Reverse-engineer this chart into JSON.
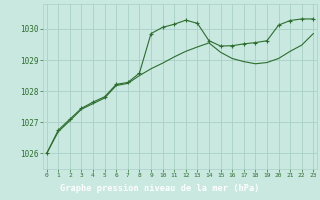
{
  "bg_color": "#c8e8e0",
  "plot_bg_color": "#c8e8e0",
  "label_bg_color": "#2d6e2d",
  "grid_color": "#a8d0c8",
  "line_color1": "#2d6e2d",
  "line_color2": "#2d6e2d",
  "xlabel": "Graphe pression niveau de la mer (hPa)",
  "ylim": [
    1025.5,
    1030.8
  ],
  "xlim": [
    -0.3,
    23.3
  ],
  "yticks": [
    1026,
    1027,
    1028,
    1029,
    1030
  ],
  "xticks": [
    0,
    1,
    2,
    3,
    4,
    5,
    6,
    7,
    8,
    9,
    10,
    11,
    12,
    13,
    14,
    15,
    16,
    17,
    18,
    19,
    20,
    21,
    22,
    23
  ],
  "series1_x": [
    0,
    1,
    2,
    3,
    4,
    5,
    6,
    7,
    8,
    9,
    10,
    11,
    12,
    13,
    14,
    15,
    16,
    17,
    18,
    19,
    20,
    21,
    22,
    23
  ],
  "series1_y": [
    1026.0,
    1026.75,
    1027.1,
    1027.45,
    1027.65,
    1027.82,
    1028.22,
    1028.28,
    1028.58,
    1029.85,
    1030.05,
    1030.15,
    1030.28,
    1030.18,
    1029.62,
    1029.45,
    1029.46,
    1029.52,
    1029.56,
    1029.62,
    1030.12,
    1030.27,
    1030.32,
    1030.32
  ],
  "series2_x": [
    0,
    1,
    2,
    3,
    4,
    5,
    6,
    7,
    8,
    9,
    10,
    11,
    12,
    13,
    14,
    15,
    16,
    17,
    18,
    19,
    20,
    21,
    22,
    23
  ],
  "series2_y": [
    1026.0,
    1026.7,
    1027.05,
    1027.42,
    1027.6,
    1027.78,
    1028.18,
    1028.25,
    1028.5,
    1028.72,
    1028.9,
    1029.1,
    1029.28,
    1029.42,
    1029.55,
    1029.25,
    1029.05,
    1028.95,
    1028.88,
    1028.92,
    1029.05,
    1029.28,
    1029.48,
    1029.85
  ]
}
